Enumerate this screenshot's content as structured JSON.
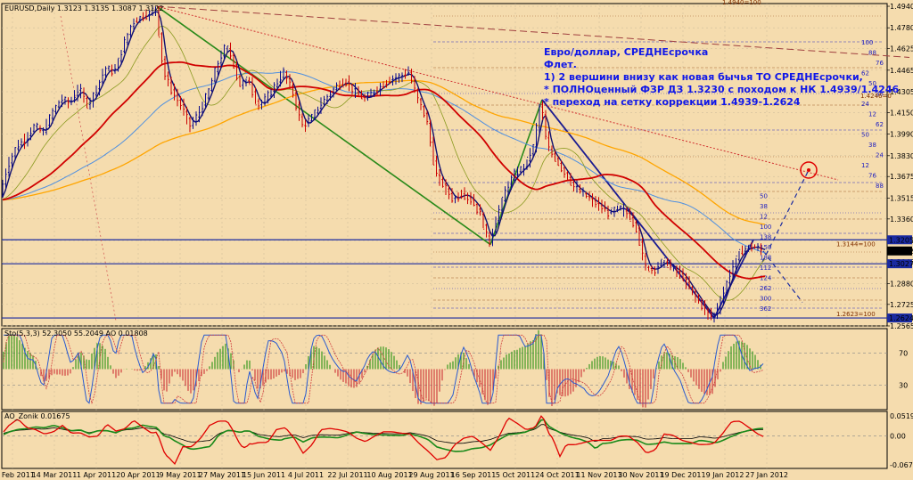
{
  "title": "EURUSD,Daily  1.3123 1.3135 1.3087 1.3122",
  "colors": {
    "background": "#f5dcae",
    "bull": "#0a0a8c",
    "bear": "#cc0000",
    "ma_red": "#d00000",
    "ma_orange": "#ffa500",
    "ma_blue": "#5090e0",
    "ma_olive": "#8a9a20",
    "trend_green": "#2a8a1a",
    "fib": "#2020c0",
    "annotation": "#1018e8"
  },
  "annotation_lines": [
    "Евро/доллар, СРЕДНЕсрочка",
    "Флет.",
    "1) 2 вершини внизу как новая бычья ТО СРЕДНЕсрочки,",
    "* ПОЛНОценный ФЗР ДЗ 1.3230 с походом к НК 1.4939/1.4246",
    "* переход на сетку коррекции 1.4939-1.2624"
  ],
  "chart_data": [
    {
      "type": "line",
      "name": "price",
      "title": "EURUSD,Daily  1.3123 1.3135 1.3087 1.3122",
      "y_ticks": [
        "1.4940",
        "1.4780",
        "1.4625",
        "1.4465",
        "1.4305",
        "1.4150",
        "1.3990",
        "1.3830",
        "1.3675",
        "1.3515",
        "1.3360",
        "1.3200",
        "1.3040",
        "1.2880",
        "1.2725",
        "1.2565"
      ],
      "x_ticks": [
        "23 Feb 2011",
        "14 Mar 2011",
        "1 Apr 2011",
        "20 Apr 2011",
        "9 May 2011",
        "27 May 2011",
        "15 Jun 2011",
        "4 Jul 2011",
        "22 Jul 2011",
        "10 Aug 2011",
        "29 Aug 2011",
        "16 Sep 2011",
        "5 Oct 2011",
        "24 Oct 2011",
        "11 Nov 2011",
        "30 Nov 2011",
        "19 Dec 2011",
        "9 Jan 2012",
        "27 Jan 2012"
      ],
      "ylim": [
        1.2565,
        1.496
      ],
      "price_path": [
        [
          0,
          1.35
        ],
        [
          10,
          1.375
        ],
        [
          20,
          1.39
        ],
        [
          30,
          1.395
        ],
        [
          40,
          1.405
        ],
        [
          50,
          1.4
        ],
        [
          60,
          1.415
        ],
        [
          70,
          1.425
        ],
        [
          80,
          1.422
        ],
        [
          90,
          1.433
        ],
        [
          100,
          1.42
        ],
        [
          110,
          1.433
        ],
        [
          120,
          1.448
        ],
        [
          130,
          1.445
        ],
        [
          140,
          1.465
        ],
        [
          150,
          1.482
        ],
        [
          160,
          1.486
        ],
        [
          170,
          1.489
        ],
        [
          176,
          1.4939
        ],
        [
          185,
          1.445
        ],
        [
          195,
          1.43
        ],
        [
          205,
          1.42
        ],
        [
          215,
          1.405
        ],
        [
          225,
          1.415
        ],
        [
          235,
          1.43
        ],
        [
          245,
          1.45
        ],
        [
          255,
          1.465
        ],
        [
          262,
          1.455
        ],
        [
          270,
          1.435
        ],
        [
          280,
          1.44
        ],
        [
          290,
          1.42
        ],
        [
          300,
          1.425
        ],
        [
          310,
          1.435
        ],
        [
          320,
          1.445
        ],
        [
          330,
          1.43
        ],
        [
          340,
          1.405
        ],
        [
          350,
          1.41
        ],
        [
          360,
          1.42
        ],
        [
          370,
          1.428
        ],
        [
          380,
          1.435
        ],
        [
          390,
          1.438
        ],
        [
          400,
          1.43
        ],
        [
          410,
          1.425
        ],
        [
          420,
          1.43
        ],
        [
          430,
          1.435
        ],
        [
          440,
          1.44
        ],
        [
          450,
          1.442
        ],
        [
          460,
          1.445
        ],
        [
          470,
          1.425
        ],
        [
          480,
          1.41
        ],
        [
          490,
          1.37
        ],
        [
          500,
          1.36
        ],
        [
          510,
          1.35
        ],
        [
          520,
          1.355
        ],
        [
          530,
          1.35
        ],
        [
          540,
          1.34
        ],
        [
          550,
          1.317
        ],
        [
          560,
          1.34
        ],
        [
          570,
          1.36
        ],
        [
          580,
          1.37
        ],
        [
          590,
          1.375
        ],
        [
          600,
          1.39
        ],
        [
          608,
          1.4246
        ],
        [
          615,
          1.39
        ],
        [
          625,
          1.38
        ],
        [
          635,
          1.37
        ],
        [
          645,
          1.36
        ],
        [
          655,
          1.355
        ],
        [
          665,
          1.35
        ],
        [
          675,
          1.345
        ],
        [
          685,
          1.34
        ],
        [
          695,
          1.345
        ],
        [
          705,
          1.34
        ],
        [
          715,
          1.33
        ],
        [
          725,
          1.3
        ],
        [
          735,
          1.298
        ],
        [
          745,
          1.305
        ],
        [
          755,
          1.3
        ],
        [
          765,
          1.295
        ],
        [
          775,
          1.285
        ],
        [
          785,
          1.275
        ],
        [
          795,
          1.266
        ],
        [
          801,
          1.2624
        ],
        [
          810,
          1.275
        ],
        [
          820,
          1.295
        ],
        [
          830,
          1.31
        ],
        [
          840,
          1.315
        ],
        [
          850,
          1.315
        ],
        [
          856,
          1.3122
        ]
      ],
      "levels": [
        {
          "label": "1.4940=100",
          "y": 1.494
        },
        {
          "label": "1.4246=0",
          "y": 1.4246
        },
        {
          "label": "1.3144=100",
          "y": 1.3144
        },
        {
          "label": "1.2623=100",
          "y": 1.2623
        }
      ],
      "price_tags": [
        {
          "label": "1.3205",
          "y": 1.3205
        },
        {
          "label": "1.3122",
          "y": 1.3122
        },
        {
          "label": "1.3027",
          "y": 1.3027
        },
        {
          "label": "1.2624",
          "y": 1.2624
        }
      ],
      "fib_labels": [
        "100",
        "88",
        "76",
        "62",
        "50",
        "38",
        "24",
        "12",
        "62",
        "50",
        "38",
        "24",
        "12",
        "76",
        "88",
        "50",
        "38",
        "12",
        "100",
        "138",
        "150",
        "188",
        "112",
        "124",
        "262",
        "300",
        "362"
      ]
    },
    {
      "type": "bar",
      "name": "oscillator",
      "title": "Sto(5,3,3) 52.3050 55.2049  AO 0.01808",
      "y_ticks": [
        "70",
        "30"
      ],
      "ylim": [
        0,
        100
      ]
    },
    {
      "type": "line",
      "name": "ao_zonik",
      "title": "AO_Zonik 0.01675",
      "y_ticks": [
        "0.05197",
        "0.00",
        "-0.06795"
      ],
      "ylim": [
        -0.06795,
        0.05197
      ]
    }
  ]
}
